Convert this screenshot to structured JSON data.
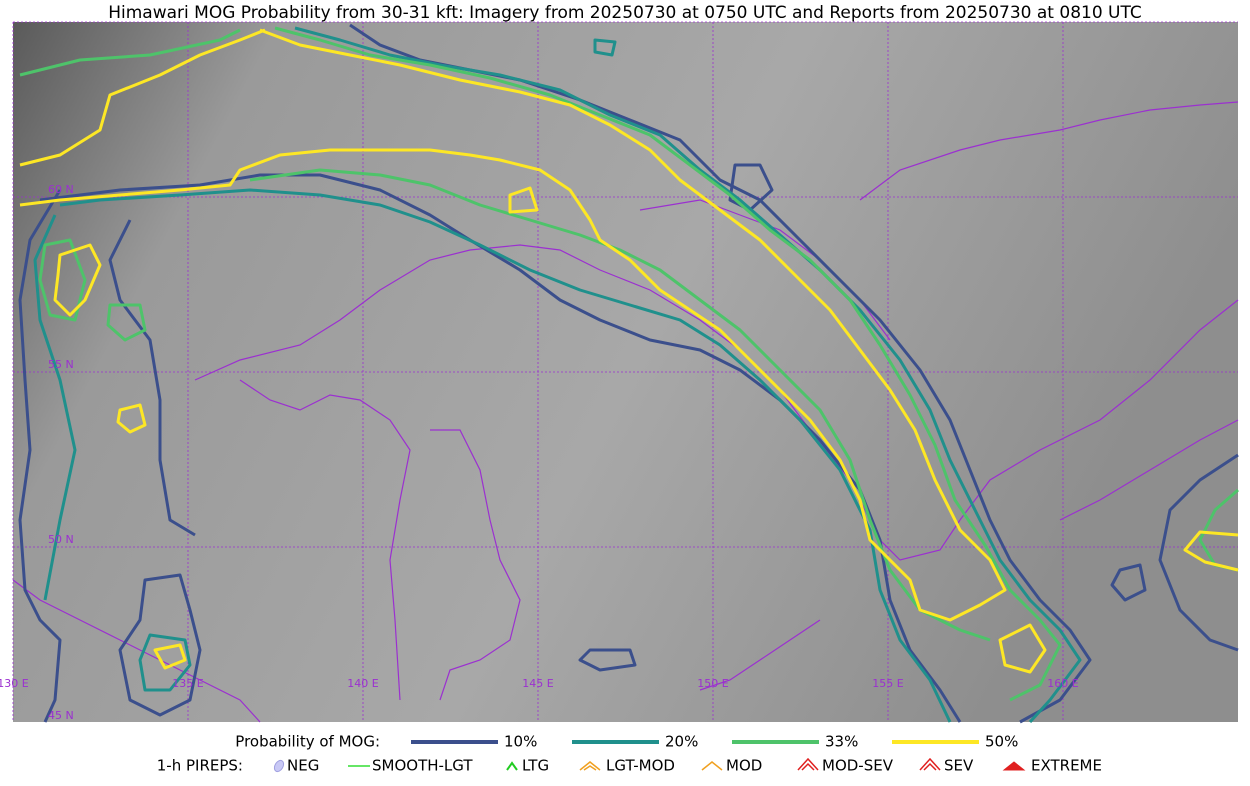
{
  "header": {
    "title": "Himawari MOG Probability from 30-31 kft: Imagery from 20250730 at 0750 UTC and Reports from 20250730 at 0810 UTC"
  },
  "map": {
    "latitude_labels": [
      "60 N",
      "55 N",
      "50 N",
      "45 N"
    ],
    "longitude_labels": [
      "130 E",
      "135 E",
      "140 E",
      "145 E",
      "150 E",
      "155 E",
      "160 E"
    ]
  },
  "legend": {
    "probability": {
      "heading": "Probability of MOG:",
      "items": [
        "10%",
        "20%",
        "33%",
        "50%"
      ]
    },
    "pireps": {
      "heading": "1-h PIREPS:",
      "items": [
        "NEG",
        "SMOOTH-LGT",
        "LTG",
        "LGT-MOD",
        "MOD",
        "MOD-SEV",
        "SEV",
        "EXTREME"
      ]
    }
  }
}
